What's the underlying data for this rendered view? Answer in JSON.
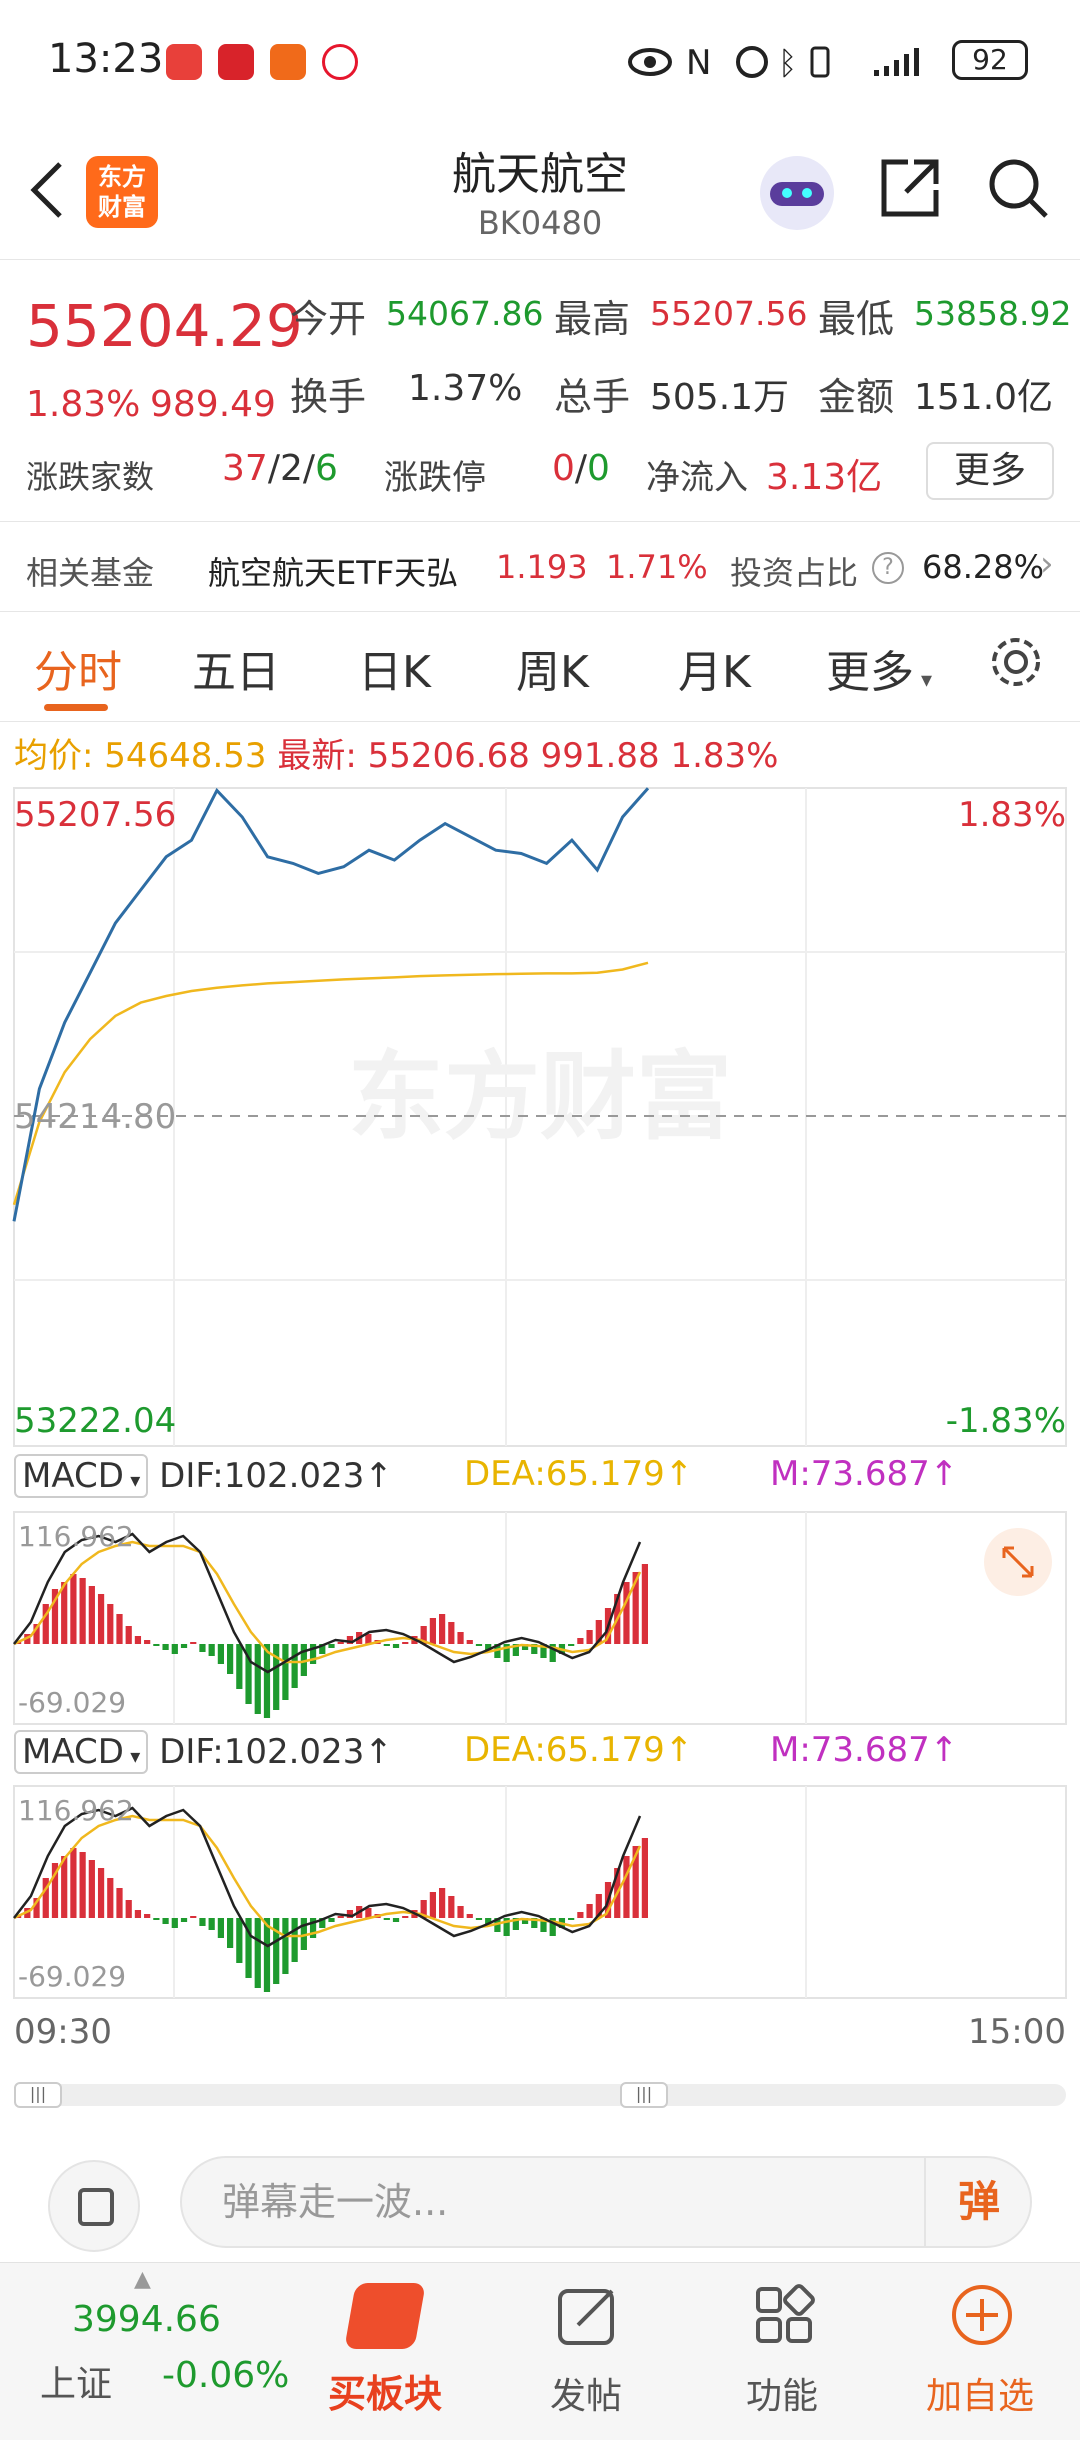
{
  "status_bar": {
    "time": "13:23",
    "battery": "92"
  },
  "header": {
    "title": "航天航空",
    "code": "BK0480",
    "logo_text": "东方\n财富"
  },
  "quote": {
    "price": "55204.29",
    "change_pct": "1.83%",
    "change": "989.49",
    "open_label": "今开",
    "open": "54067.86",
    "high_label": "最高",
    "high": "55207.56",
    "low_label": "最低",
    "low": "53858.92",
    "turnover_label": "换手",
    "turnover": "1.37%",
    "volume_label": "总手",
    "volume": "505.1万",
    "amount_label": "金额",
    "amount": "151.0亿",
    "updown_label": "涨跌家数",
    "up": "37",
    "flat": "2",
    "down": "6",
    "limit_label": "涨跌停",
    "limit_up": "0",
    "limit_down": "0",
    "inflow_label": "净流入",
    "inflow": "3.13亿",
    "more_label": "更多"
  },
  "fund": {
    "label": "相关基金",
    "name": "航空航天ETF天弘",
    "price": "1.193",
    "pct": "1.71%",
    "ratio_label": "投资占比",
    "ratio": "68.28%"
  },
  "tabs": [
    {
      "label": "分时"
    },
    {
      "label": "五日"
    },
    {
      "label": "日K"
    },
    {
      "label": "周K"
    },
    {
      "label": "月K"
    },
    {
      "label": "更多"
    }
  ],
  "avg": {
    "avg_label": "均价:",
    "avg": "54648.53",
    "latest_label": "最新:",
    "latest": "55206.68",
    "change": "991.88",
    "pct": "1.83%"
  },
  "chart_labels": {
    "top": "55207.56",
    "top_pct": "1.83%",
    "mid": "54214.80",
    "bottom": "53222.04",
    "bottom_pct": "-1.83%",
    "watermark": "东方财富"
  },
  "macd": {
    "name": "MACD",
    "dif": "DIF:102.023↑",
    "dea": "DEA:65.179↑",
    "m": "M:73.687↑",
    "max": "116.962",
    "min": "-69.029"
  },
  "time_axis": {
    "start": "09:30",
    "end": "15:00"
  },
  "danmu": {
    "placeholder": "弹幕走一波...",
    "button": "弹"
  },
  "nav": {
    "index_value": "3994.66",
    "index_name": "上证",
    "index_pct": "-0.06%",
    "items": [
      {
        "label": "买板块"
      },
      {
        "label": "发帖"
      },
      {
        "label": "功能"
      },
      {
        "label": "加自选"
      }
    ]
  },
  "colors": {
    "up": "#d9303a",
    "down": "#1e9a2e",
    "price_line": "#2e6da4",
    "avg_line": "#f0b81e",
    "accent": "#e8641e",
    "dea": "#e8b400",
    "m": "#c030c0"
  },
  "chart_data": {
    "type": "line",
    "series": [
      {
        "name": "price",
        "values": [
          53900,
          54300,
          54500,
          54650,
          54800,
          54900,
          55000,
          55050,
          55200,
          55120,
          55000,
          54980,
          54950,
          54970,
          55020,
          54990,
          55050,
          55100,
          55060,
          55020,
          55010,
          54980,
          55050,
          54960,
          55120,
          55207
        ]
      },
      {
        "name": "avg",
        "values": [
          53950,
          54200,
          54350,
          54450,
          54520,
          54560,
          54580,
          54595,
          54605,
          54612,
          54618,
          54622,
          54626,
          54630,
          54633,
          54636,
          54640,
          54642,
          54644,
          54646,
          54647,
          54648,
          54648,
          54650,
          54660,
          54680
        ]
      }
    ],
    "ylim": [
      53222.04,
      55207.56
    ]
  }
}
